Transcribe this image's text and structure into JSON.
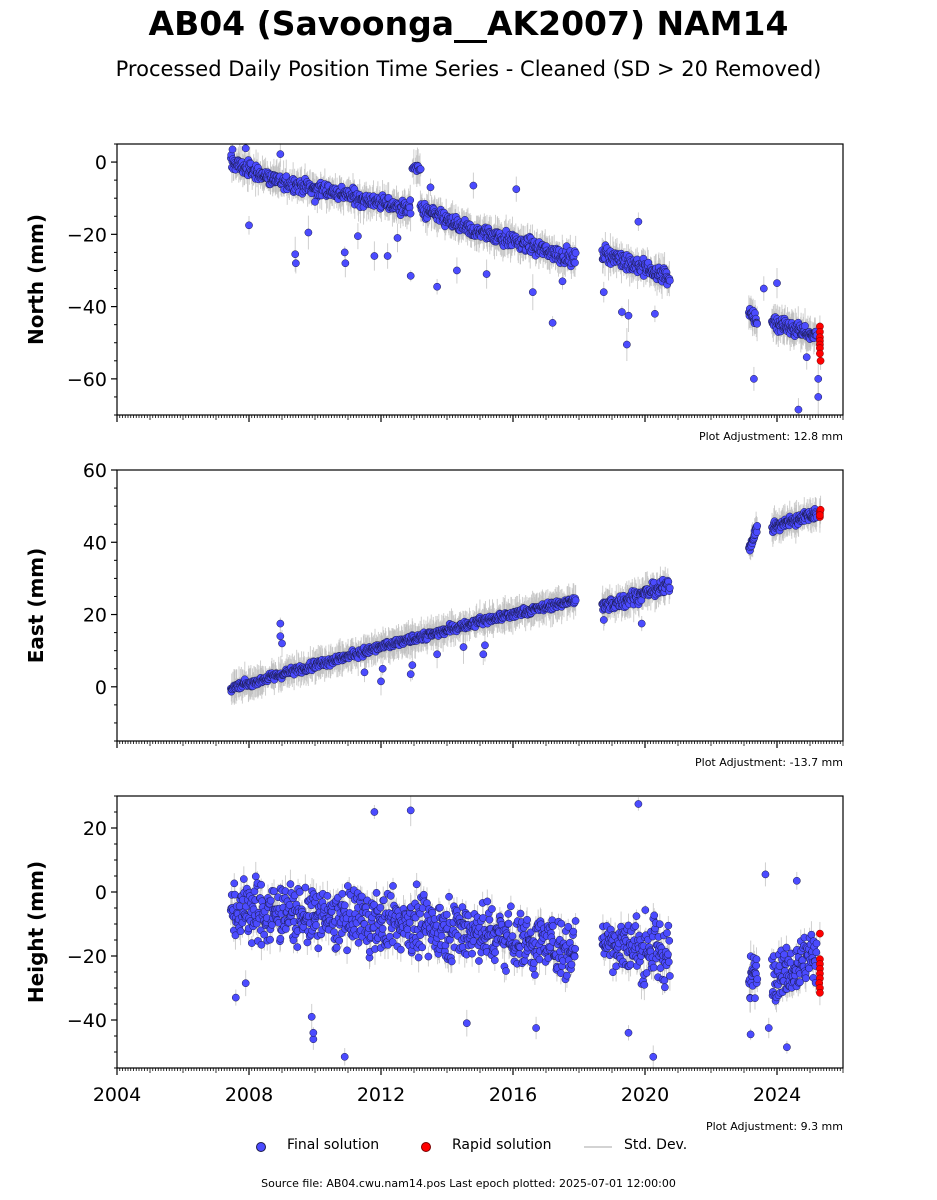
{
  "title": "AB04 (Savoonga__AK2007) NAM14",
  "subtitle": "Processed Daily Position Time Series - Cleaned (SD > 20 Removed)",
  "legend": {
    "final": "Final solution",
    "rapid": "Rapid solution",
    "std": "Std. Dev."
  },
  "footer": "Source file: AB04.cwu.nam14.pos  Last epoch plotted: 2025-07-01 12:00:00",
  "colors": {
    "final": "#4b4bff",
    "final_edge": "#1a1a4a",
    "rapid": "#ff0000",
    "std": "#bbbbbb",
    "axis": "#000000"
  },
  "chart_data": [
    {
      "type": "scatter",
      "ylabel": "North (mm)",
      "adjustment": "Plot Adjustment: 12.8 mm",
      "xlim": [
        2004.0,
        2026.0
      ],
      "ylim": [
        -70,
        5
      ],
      "yticks": [
        0,
        -20,
        -40,
        -60
      ],
      "ytick_labels": [
        "0",
        "−20",
        "−40",
        "−60"
      ],
      "yminor_step": 5,
      "show_xticklabels": false,
      "final_segments": [
        {
          "x0": 2007.45,
          "x1": 2008.8,
          "y0": 0,
          "y1": -5,
          "scatter": 2.0,
          "n": 95
        },
        {
          "x0": 2008.8,
          "x1": 2010.9,
          "y0": -5,
          "y1": -9,
          "scatter": 2.0,
          "n": 130
        },
        {
          "x0": 2010.9,
          "x1": 2012.9,
          "y0": -9,
          "y1": -13,
          "scatter": 2.0,
          "n": 130
        },
        {
          "x0": 2012.95,
          "x1": 2013.2,
          "y0": -1,
          "y1": -2,
          "scatter": 1.2,
          "n": 12
        },
        {
          "x0": 2013.2,
          "x1": 2015.0,
          "y0": -13,
          "y1": -20,
          "scatter": 2.0,
          "n": 120
        },
        {
          "x0": 2015.0,
          "x1": 2017.9,
          "y0": -19,
          "y1": -27,
          "scatter": 2.0,
          "n": 180
        },
        {
          "x0": 2018.7,
          "x1": 2020.75,
          "y0": -25,
          "y1": -32,
          "scatter": 2.2,
          "n": 140
        },
        {
          "x0": 2023.15,
          "x1": 2023.4,
          "y0": -42,
          "y1": -44,
          "scatter": 1.8,
          "n": 20
        },
        {
          "x0": 2023.85,
          "x1": 2025.2,
          "y0": -44,
          "y1": -48,
          "scatter": 2.0,
          "n": 110
        }
      ],
      "final_outliers": [
        {
          "x": 2007.5,
          "y": 3.5
        },
        {
          "x": 2007.9,
          "y": 3.8
        },
        {
          "x": 2008.0,
          "y": -17.5
        },
        {
          "x": 2008.95,
          "y": 2.2
        },
        {
          "x": 2009.4,
          "y": -25.5
        },
        {
          "x": 2009.42,
          "y": -28.0
        },
        {
          "x": 2009.8,
          "y": -19.5
        },
        {
          "x": 2010.0,
          "y": -11.0
        },
        {
          "x": 2010.9,
          "y": -25.0
        },
        {
          "x": 2010.92,
          "y": -28.0
        },
        {
          "x": 2011.3,
          "y": -20.5
        },
        {
          "x": 2011.8,
          "y": -26.0
        },
        {
          "x": 2012.2,
          "y": -26.0
        },
        {
          "x": 2012.5,
          "y": -21.0
        },
        {
          "x": 2012.9,
          "y": -31.5
        },
        {
          "x": 2013.5,
          "y": -7.0
        },
        {
          "x": 2013.7,
          "y": -34.5
        },
        {
          "x": 2014.3,
          "y": -30.0
        },
        {
          "x": 2014.8,
          "y": -6.5
        },
        {
          "x": 2015.2,
          "y": -31.0
        },
        {
          "x": 2016.1,
          "y": -7.5
        },
        {
          "x": 2016.6,
          "y": -36.0
        },
        {
          "x": 2017.2,
          "y": -44.5
        },
        {
          "x": 2017.5,
          "y": -33.0
        },
        {
          "x": 2018.75,
          "y": -36.0
        },
        {
          "x": 2019.3,
          "y": -41.5
        },
        {
          "x": 2019.5,
          "y": -42.5
        },
        {
          "x": 2019.45,
          "y": -50.5
        },
        {
          "x": 2019.8,
          "y": -16.5
        },
        {
          "x": 2020.3,
          "y": -42.0
        },
        {
          "x": 2023.3,
          "y": -60.0
        },
        {
          "x": 2023.6,
          "y": -35.0
        },
        {
          "x": 2024.0,
          "y": -33.5
        },
        {
          "x": 2024.65,
          "y": -68.5
        },
        {
          "x": 2024.9,
          "y": -54.0
        },
        {
          "x": 2025.25,
          "y": -60.0
        },
        {
          "x": 2025.25,
          "y": -65.0
        }
      ],
      "rapid_points": [
        {
          "x": 2025.3,
          "y": -45.5
        },
        {
          "x": 2025.3,
          "y": -47.0
        },
        {
          "x": 2025.3,
          "y": -48.5
        },
        {
          "x": 2025.3,
          "y": -49.5
        },
        {
          "x": 2025.3,
          "y": -50.5
        },
        {
          "x": 2025.3,
          "y": -51.5
        },
        {
          "x": 2025.3,
          "y": -53.0
        },
        {
          "x": 2025.32,
          "y": -55.0
        }
      ]
    },
    {
      "type": "scatter",
      "ylabel": "East (mm)",
      "adjustment": "Plot Adjustment: -13.7 mm",
      "xlim": [
        2004.0,
        2026.0
      ],
      "ylim": [
        -15,
        60
      ],
      "yticks": [
        0,
        20,
        40,
        60
      ],
      "ytick_labels": [
        "0",
        "20",
        "40",
        "60"
      ],
      "yminor_step": 5,
      "show_xticklabels": false,
      "final_segments": [
        {
          "x0": 2007.45,
          "x1": 2008.8,
          "y0": -0.5,
          "y1": 3,
          "scatter": 1.0,
          "n": 90
        },
        {
          "x0": 2008.8,
          "x1": 2012.0,
          "y0": 3,
          "y1": 11,
          "scatter": 1.1,
          "n": 200
        },
        {
          "x0": 2012.0,
          "x1": 2015.0,
          "y0": 11,
          "y1": 18,
          "scatter": 1.1,
          "n": 200
        },
        {
          "x0": 2015.0,
          "x1": 2017.9,
          "y0": 18,
          "y1": 24,
          "scatter": 1.1,
          "n": 190
        },
        {
          "x0": 2018.7,
          "x1": 2020.75,
          "y0": 22,
          "y1": 28,
          "scatter": 1.8,
          "n": 140
        },
        {
          "x0": 2023.15,
          "x1": 2023.4,
          "y0": 38,
          "y1": 44,
          "scatter": 1.2,
          "n": 25
        },
        {
          "x0": 2023.85,
          "x1": 2025.2,
          "y0": 44,
          "y1": 48,
          "scatter": 1.5,
          "n": 110
        }
      ],
      "final_outliers": [
        {
          "x": 2008.95,
          "y": 17.5
        },
        {
          "x": 2008.95,
          "y": 14.0
        },
        {
          "x": 2009.0,
          "y": 12.0
        },
        {
          "x": 2011.5,
          "y": 4.0
        },
        {
          "x": 2012.0,
          "y": 1.5
        },
        {
          "x": 2012.05,
          "y": 5.0
        },
        {
          "x": 2012.9,
          "y": 3.5
        },
        {
          "x": 2012.95,
          "y": 6.0
        },
        {
          "x": 2013.7,
          "y": 9.0
        },
        {
          "x": 2014.5,
          "y": 11.0
        },
        {
          "x": 2015.1,
          "y": 9.0
        },
        {
          "x": 2015.15,
          "y": 11.5
        },
        {
          "x": 2018.75,
          "y": 18.5
        },
        {
          "x": 2019.9,
          "y": 17.5
        }
      ],
      "rapid_points": [
        {
          "x": 2025.3,
          "y": 47.0
        },
        {
          "x": 2025.3,
          "y": 48.0
        },
        {
          "x": 2025.3,
          "y": 48.5
        },
        {
          "x": 2025.32,
          "y": 49.0
        },
        {
          "x": 2025.3,
          "y": 47.5
        }
      ]
    },
    {
      "type": "scatter",
      "ylabel": "Height (mm)",
      "adjustment": "Plot Adjustment: 9.3 mm",
      "xlim": [
        2004.0,
        2026.0
      ],
      "ylim": [
        -55,
        30
      ],
      "yticks": [
        20,
        0,
        -20,
        -40
      ],
      "ytick_labels": [
        "20",
        "0",
        "−20",
        "−40"
      ],
      "yminor_step": 5,
      "show_xticklabels": true,
      "xticks": [
        2004,
        2008,
        2012,
        2016,
        2020,
        2024
      ],
      "xtick_labels": [
        "2004",
        "2008",
        "2012",
        "2016",
        "2020",
        "2024"
      ],
      "final_segments": [
        {
          "x0": 2007.45,
          "x1": 2010.0,
          "y0": -5,
          "y1": -8,
          "scatter": 9.0,
          "n": 190
        },
        {
          "x0": 2010.0,
          "x1": 2013.0,
          "y0": -8,
          "y1": -10,
          "scatter": 9.0,
          "n": 210
        },
        {
          "x0": 2013.0,
          "x1": 2015.5,
          "y0": -10,
          "y1": -13,
          "scatter": 9.0,
          "n": 180
        },
        {
          "x0": 2015.5,
          "x1": 2017.9,
          "y0": -13,
          "y1": -18,
          "scatter": 9.0,
          "n": 170
        },
        {
          "x0": 2018.7,
          "x1": 2020.75,
          "y0": -15,
          "y1": -20,
          "scatter": 9.0,
          "n": 150
        },
        {
          "x0": 2023.15,
          "x1": 2023.4,
          "y0": -28,
          "y1": -25,
          "scatter": 7.0,
          "n": 25
        },
        {
          "x0": 2023.85,
          "x1": 2025.2,
          "y0": -25,
          "y1": -20,
          "scatter": 8.0,
          "n": 110
        }
      ],
      "final_outliers": [
        {
          "x": 2007.6,
          "y": -33.0
        },
        {
          "x": 2007.9,
          "y": -28.5
        },
        {
          "x": 2009.95,
          "y": -46.0
        },
        {
          "x": 2009.95,
          "y": -44.0
        },
        {
          "x": 2009.9,
          "y": -39.0
        },
        {
          "x": 2010.9,
          "y": -51.5
        },
        {
          "x": 2011.8,
          "y": 25.0
        },
        {
          "x": 2012.9,
          "y": 25.5
        },
        {
          "x": 2019.8,
          "y": 27.5
        },
        {
          "x": 2020.25,
          "y": -51.5
        },
        {
          "x": 2019.5,
          "y": -44.0
        },
        {
          "x": 2014.6,
          "y": -41.0
        },
        {
          "x": 2016.7,
          "y": -42.5
        },
        {
          "x": 2023.2,
          "y": -44.5
        },
        {
          "x": 2023.65,
          "y": 5.5
        },
        {
          "x": 2024.3,
          "y": -48.5
        },
        {
          "x": 2024.6,
          "y": 3.5
        },
        {
          "x": 2023.75,
          "y": -42.5
        }
      ],
      "rapid_points": [
        {
          "x": 2025.3,
          "y": -13.0
        },
        {
          "x": 2025.3,
          "y": -21.0
        },
        {
          "x": 2025.3,
          "y": -22.5
        },
        {
          "x": 2025.3,
          "y": -24.0
        },
        {
          "x": 2025.3,
          "y": -25.5
        },
        {
          "x": 2025.3,
          "y": -27.0
        },
        {
          "x": 2025.28,
          "y": -28.5
        },
        {
          "x": 2025.3,
          "y": -30.0
        },
        {
          "x": 2025.3,
          "y": -31.5
        }
      ]
    }
  ]
}
